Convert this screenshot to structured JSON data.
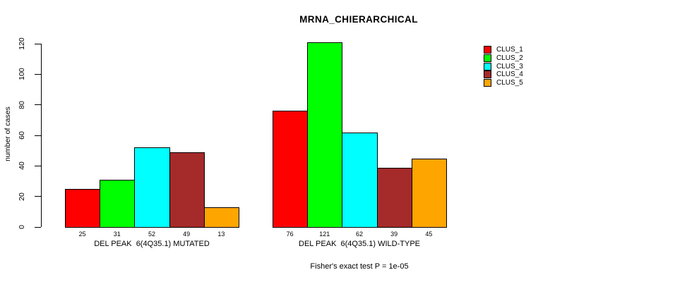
{
  "title": "MRNA_CHIERARCHICAL",
  "chart_data": {
    "type": "bar",
    "title": "MRNA_CHIERARCHICAL",
    "ylabel": "number of cases",
    "xlabel": "",
    "ylim": [
      0,
      120
    ],
    "yticks": [
      0,
      20,
      40,
      60,
      80,
      100,
      120
    ],
    "grid": false,
    "legend_position": "right",
    "series_labels": [
      "CLUS_1",
      "CLUS_2",
      "CLUS_3",
      "CLUS_4",
      "CLUS_5"
    ],
    "series_colors": [
      "#FF0000",
      "#00FF00",
      "#00FFFF",
      "#A52A2A",
      "#FFA500"
    ],
    "groups": [
      {
        "label": "DEL PEAK  6(4Q35.1) MUTATED",
        "values": [
          25,
          31,
          52,
          49,
          13
        ]
      },
      {
        "label": "DEL PEAK  6(4Q35.1) WILD-TYPE",
        "values": [
          76,
          121,
          62,
          39,
          45
        ]
      }
    ],
    "bar_value_labels_shown": true,
    "annotation": "Fisher's exact test P = 1e-05"
  },
  "legend": [
    {
      "label": "CLUS_1",
      "color": "#FF0000"
    },
    {
      "label": "CLUS_2",
      "color": "#00FF00"
    },
    {
      "label": "CLUS_3",
      "color": "#00FFFF"
    },
    {
      "label": "CLUS_4",
      "color": "#A52A2A"
    },
    {
      "label": "CLUS_5",
      "color": "#FFA500"
    }
  ]
}
